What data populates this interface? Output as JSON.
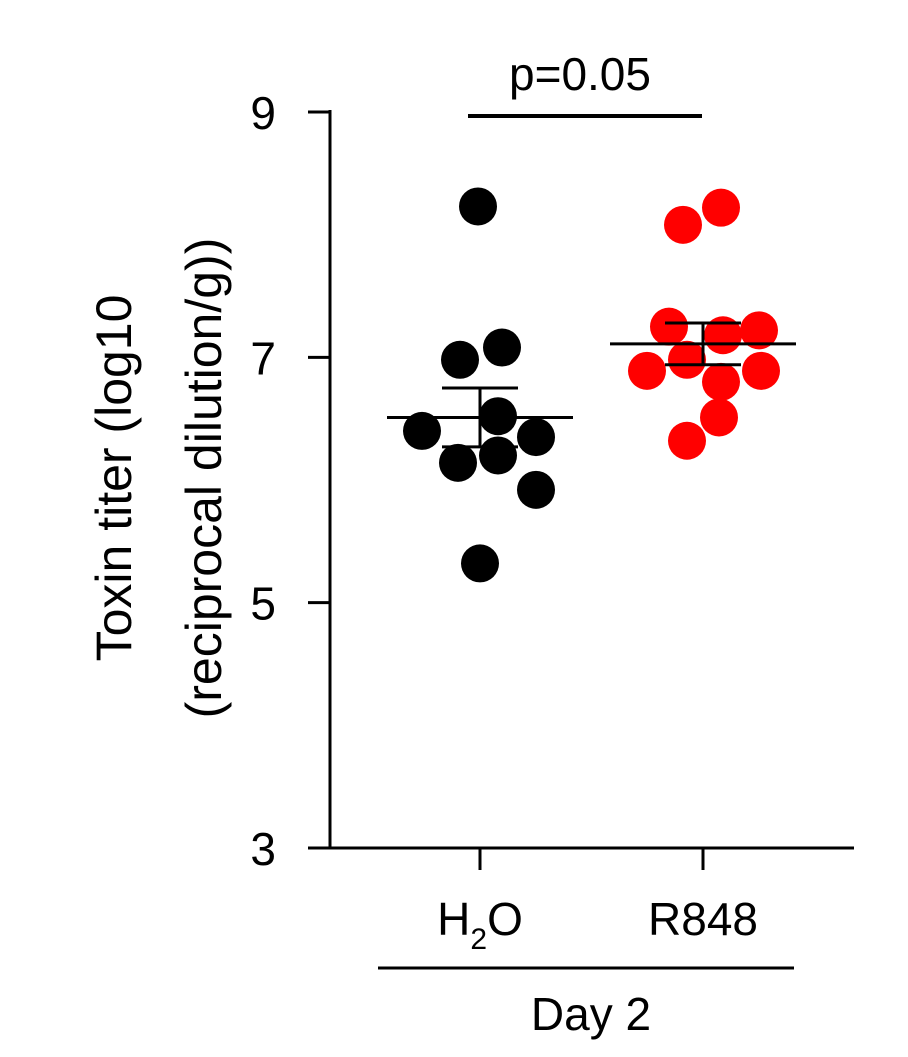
{
  "chart_data": {
    "type": "scatter",
    "ylabel_line1": "Toxin titer (log10",
    "ylabel_line2": "(reciprocal dilution/g))",
    "ylim": [
      3,
      9
    ],
    "yticks": [
      3,
      5,
      7,
      9
    ],
    "categories": [
      {
        "label": "H",
        "subscript": "2",
        "suffix": "O"
      },
      {
        "label": "R848",
        "subscript": "",
        "suffix": ""
      }
    ],
    "group_label": "Day 2",
    "significance": {
      "text": "p=0.05",
      "from": 0,
      "to": 1
    },
    "series": [
      {
        "category": 0,
        "color": "#000000",
        "values": [
          8.23,
          6.98,
          7.08,
          6.4,
          6.52,
          6.35,
          6.14,
          6.2,
          5.92,
          5.32
        ],
        "mean": 6.51,
        "sem": 0.24
      },
      {
        "category": 1,
        "color": "#ff0000",
        "values": [
          8.08,
          8.22,
          7.25,
          7.18,
          7.22,
          6.89,
          6.98,
          6.89,
          6.8,
          6.51,
          6.32
        ],
        "mean": 7.11,
        "sem": 0.17
      }
    ]
  }
}
